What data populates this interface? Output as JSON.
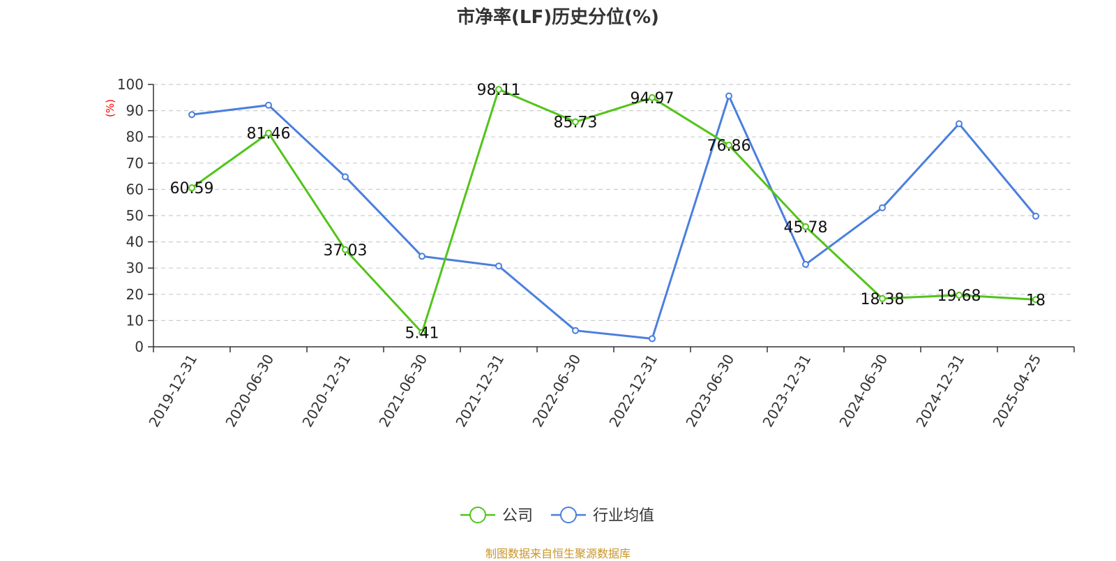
{
  "chart_data": {
    "type": "line",
    "title": "市净率(LF)历史分位(%)",
    "ylabel": "(%)",
    "xlabel": "",
    "ylim": [
      0,
      100
    ],
    "yticks": [
      0,
      10,
      20,
      30,
      40,
      50,
      60,
      70,
      80,
      90,
      100
    ],
    "categories": [
      "2019-12-31",
      "2020-06-30",
      "2020-12-31",
      "2021-06-30",
      "2021-12-31",
      "2022-06-30",
      "2022-12-31",
      "2023-06-30",
      "2023-12-31",
      "2024-06-30",
      "2024-12-31",
      "2025-04-25"
    ],
    "grid": true,
    "legend_position": "bottom",
    "series": [
      {
        "name": "公司",
        "color": "#52c41a",
        "values": [
          60.59,
          81.46,
          37.03,
          5.41,
          98.11,
          85.73,
          94.97,
          76.86,
          45.78,
          18.38,
          19.68,
          18
        ],
        "labels": [
          "60.59",
          "81.46",
          "37.03",
          "5.41",
          "98.11",
          "85.73",
          "94.97",
          "76.86",
          "45.78",
          "18.38",
          "19.68",
          "18"
        ]
      },
      {
        "name": "行业均值",
        "color": "#4a7fde",
        "values": [
          88.5,
          92.1,
          64.8,
          34.5,
          30.8,
          6.2,
          3.1,
          95.6,
          31.4,
          53.0,
          85.0,
          49.8
        ]
      }
    ],
    "source": "制图数据来自恒生聚源数据库"
  }
}
